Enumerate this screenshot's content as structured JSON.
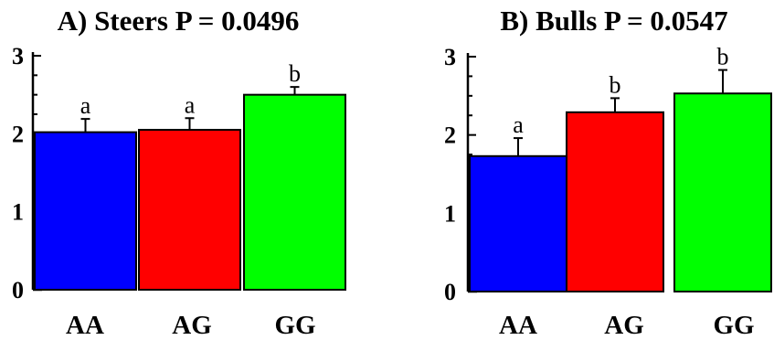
{
  "chart_data": [
    {
      "type": "bar",
      "title": "A) Steers  P = 0.0496",
      "categories": [
        "AA",
        "AG",
        "GG"
      ],
      "values": [
        2.02,
        2.05,
        2.5
      ],
      "errors": [
        0.17,
        0.15,
        0.1
      ],
      "significance": [
        "a",
        "a",
        "b"
      ],
      "colors": [
        "#0000ff",
        "#ff0000",
        "#00ff00"
      ],
      "yticks": [
        "0",
        "1",
        "2",
        "3"
      ],
      "ylim": [
        0,
        3
      ],
      "xlabel": "",
      "ylabel": ""
    },
    {
      "type": "bar",
      "title": "B) Bulls P = 0.0547",
      "categories": [
        "AA",
        "AG",
        "GG"
      ],
      "values": [
        1.73,
        2.29,
        2.53
      ],
      "errors": [
        0.23,
        0.18,
        0.3
      ],
      "significance": [
        "a",
        "b",
        "b"
      ],
      "colors": [
        "#0000ff",
        "#ff0000",
        "#00ff00"
      ],
      "yticks": [
        "0",
        "1",
        "2",
        "3"
      ],
      "ylim": [
        0,
        3
      ],
      "xlabel": "",
      "ylabel": ""
    }
  ]
}
